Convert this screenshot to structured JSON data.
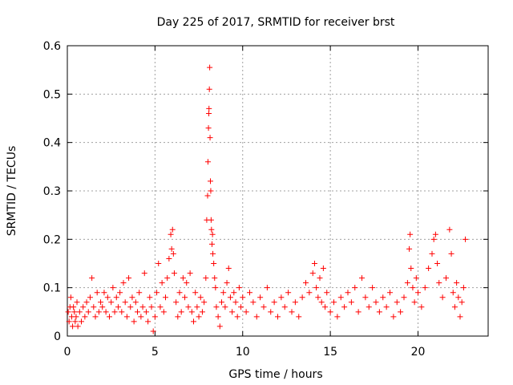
{
  "chart_data": {
    "type": "scatter",
    "title": "Day 225 of 2017, SRMTID for receiver brst",
    "xlabel": "GPS time / hours",
    "ylabel": "SRMTID / TECUs",
    "xlim": [
      0,
      24
    ],
    "ylim": [
      0,
      0.6
    ],
    "x_ticks": [
      0,
      5,
      10,
      15,
      20
    ],
    "x_tick_labels": [
      "0",
      "5",
      "10",
      "15",
      "20"
    ],
    "y_ticks": [
      0,
      0.1,
      0.2,
      0.3,
      0.4,
      0.5,
      0.6
    ],
    "y_tick_labels": [
      "0",
      "0.1",
      "0.2",
      "0.3",
      "0.4",
      "0.5",
      "0.6"
    ],
    "grid": true,
    "marker": "+",
    "point_color": "#ff0000",
    "series": [
      {
        "name": "SRMTID",
        "points": [
          [
            0.05,
            0.05
          ],
          [
            0.1,
            0.03
          ],
          [
            0.15,
            0.06
          ],
          [
            0.2,
            0.08
          ],
          [
            0.25,
            0.04
          ],
          [
            0.3,
            0.02
          ],
          [
            0.35,
            0.06
          ],
          [
            0.4,
            0.05
          ],
          [
            0.45,
            0.03
          ],
          [
            0.5,
            0.04
          ],
          [
            0.55,
            0.07
          ],
          [
            0.6,
            0.02
          ],
          [
            0.7,
            0.05
          ],
          [
            0.8,
            0.03
          ],
          [
            0.9,
            0.06
          ],
          [
            1.0,
            0.04
          ],
          [
            1.1,
            0.07
          ],
          [
            1.2,
            0.05
          ],
          [
            1.3,
            0.08
          ],
          [
            1.4,
            0.12
          ],
          [
            1.5,
            0.06
          ],
          [
            1.6,
            0.04
          ],
          [
            1.7,
            0.09
          ],
          [
            1.8,
            0.05
          ],
          [
            1.9,
            0.07
          ],
          [
            2.0,
            0.06
          ],
          [
            2.1,
            0.09
          ],
          [
            2.2,
            0.05
          ],
          [
            2.3,
            0.08
          ],
          [
            2.4,
            0.04
          ],
          [
            2.5,
            0.07
          ],
          [
            2.6,
            0.1
          ],
          [
            2.7,
            0.05
          ],
          [
            2.8,
            0.08
          ],
          [
            2.9,
            0.06
          ],
          [
            3.0,
            0.09
          ],
          [
            3.1,
            0.05
          ],
          [
            3.2,
            0.11
          ],
          [
            3.3,
            0.07
          ],
          [
            3.4,
            0.04
          ],
          [
            3.5,
            0.12
          ],
          [
            3.6,
            0.06
          ],
          [
            3.7,
            0.08
          ],
          [
            3.8,
            0.03
          ],
          [
            3.9,
            0.07
          ],
          [
            4.0,
            0.05
          ],
          [
            4.1,
            0.09
          ],
          [
            4.2,
            0.04
          ],
          [
            4.3,
            0.06
          ],
          [
            4.4,
            0.13
          ],
          [
            4.5,
            0.05
          ],
          [
            4.6,
            0.03
          ],
          [
            4.7,
            0.08
          ],
          [
            4.8,
            0.06
          ],
          [
            4.9,
            0.01
          ],
          [
            5.0,
            0.04
          ],
          [
            5.1,
            0.09
          ],
          [
            5.2,
            0.15
          ],
          [
            5.3,
            0.06
          ],
          [
            5.4,
            0.11
          ],
          [
            5.5,
            0.05
          ],
          [
            5.6,
            0.08
          ],
          [
            5.7,
            0.12
          ],
          [
            5.8,
            0.16
          ],
          [
            5.9,
            0.21
          ],
          [
            5.95,
            0.18
          ],
          [
            6.0,
            0.22
          ],
          [
            6.05,
            0.17
          ],
          [
            6.1,
            0.13
          ],
          [
            6.2,
            0.07
          ],
          [
            6.3,
            0.04
          ],
          [
            6.4,
            0.09
          ],
          [
            6.5,
            0.05
          ],
          [
            6.6,
            0.12
          ],
          [
            6.7,
            0.08
          ],
          [
            6.8,
            0.11
          ],
          [
            6.9,
            0.06
          ],
          [
            7.0,
            0.13
          ],
          [
            7.1,
            0.05
          ],
          [
            7.2,
            0.03
          ],
          [
            7.3,
            0.09
          ],
          [
            7.4,
            0.06
          ],
          [
            7.5,
            0.04
          ],
          [
            7.6,
            0.08
          ],
          [
            7.7,
            0.05
          ],
          [
            7.8,
            0.07
          ],
          [
            7.9,
            0.12
          ],
          [
            7.95,
            0.24
          ],
          [
            8.0,
            0.29
          ],
          [
            8.02,
            0.36
          ],
          [
            8.05,
            0.43
          ],
          [
            8.07,
            0.46
          ],
          [
            8.08,
            0.47
          ],
          [
            8.1,
            0.51
          ],
          [
            8.12,
            0.555
          ],
          [
            8.14,
            0.41
          ],
          [
            8.16,
            0.32
          ],
          [
            8.18,
            0.3
          ],
          [
            8.2,
            0.24
          ],
          [
            8.22,
            0.22
          ],
          [
            8.25,
            0.19
          ],
          [
            8.28,
            0.21
          ],
          [
            8.3,
            0.17
          ],
          [
            8.35,
            0.15
          ],
          [
            8.4,
            0.12
          ],
          [
            8.45,
            0.1
          ],
          [
            8.5,
            0.06
          ],
          [
            8.6,
            0.04
          ],
          [
            8.7,
            0.02
          ],
          [
            8.8,
            0.07
          ],
          [
            8.9,
            0.09
          ],
          [
            9.0,
            0.06
          ],
          [
            9.1,
            0.11
          ],
          [
            9.2,
            0.14
          ],
          [
            9.3,
            0.08
          ],
          [
            9.4,
            0.05
          ],
          [
            9.5,
            0.09
          ],
          [
            9.6,
            0.07
          ],
          [
            9.7,
            0.04
          ],
          [
            9.8,
            0.1
          ],
          [
            9.9,
            0.06
          ],
          [
            10.0,
            0.08
          ],
          [
            10.2,
            0.05
          ],
          [
            10.4,
            0.09
          ],
          [
            10.6,
            0.07
          ],
          [
            10.8,
            0.04
          ],
          [
            11.0,
            0.08
          ],
          [
            11.2,
            0.06
          ],
          [
            11.4,
            0.1
          ],
          [
            11.6,
            0.05
          ],
          [
            11.8,
            0.07
          ],
          [
            12.0,
            0.04
          ],
          [
            12.2,
            0.08
          ],
          [
            12.4,
            0.06
          ],
          [
            12.6,
            0.09
          ],
          [
            12.8,
            0.05
          ],
          [
            13.0,
            0.07
          ],
          [
            13.2,
            0.04
          ],
          [
            13.4,
            0.08
          ],
          [
            13.6,
            0.11
          ],
          [
            13.8,
            0.09
          ],
          [
            14.0,
            0.13
          ],
          [
            14.1,
            0.15
          ],
          [
            14.2,
            0.1
          ],
          [
            14.3,
            0.08
          ],
          [
            14.4,
            0.12
          ],
          [
            14.5,
            0.07
          ],
          [
            14.6,
            0.14
          ],
          [
            14.7,
            0.06
          ],
          [
            14.8,
            0.09
          ],
          [
            15.0,
            0.05
          ],
          [
            15.2,
            0.07
          ],
          [
            15.4,
            0.04
          ],
          [
            15.6,
            0.08
          ],
          [
            15.8,
            0.06
          ],
          [
            16.0,
            0.09
          ],
          [
            16.2,
            0.07
          ],
          [
            16.4,
            0.1
          ],
          [
            16.6,
            0.05
          ],
          [
            16.8,
            0.12
          ],
          [
            17.0,
            0.08
          ],
          [
            17.2,
            0.06
          ],
          [
            17.4,
            0.1
          ],
          [
            17.6,
            0.07
          ],
          [
            17.8,
            0.05
          ],
          [
            18.0,
            0.08
          ],
          [
            18.2,
            0.06
          ],
          [
            18.4,
            0.09
          ],
          [
            18.6,
            0.04
          ],
          [
            18.8,
            0.07
          ],
          [
            19.0,
            0.05
          ],
          [
            19.2,
            0.08
          ],
          [
            19.4,
            0.11
          ],
          [
            19.5,
            0.18
          ],
          [
            19.55,
            0.21
          ],
          [
            19.6,
            0.14
          ],
          [
            19.7,
            0.1
          ],
          [
            19.8,
            0.07
          ],
          [
            19.9,
            0.12
          ],
          [
            20.0,
            0.09
          ],
          [
            20.2,
            0.06
          ],
          [
            20.4,
            0.1
          ],
          [
            20.6,
            0.14
          ],
          [
            20.8,
            0.17
          ],
          [
            20.9,
            0.2
          ],
          [
            21.0,
            0.21
          ],
          [
            21.1,
            0.15
          ],
          [
            21.2,
            0.11
          ],
          [
            21.4,
            0.08
          ],
          [
            21.6,
            0.12
          ],
          [
            21.8,
            0.22
          ],
          [
            21.9,
            0.17
          ],
          [
            22.0,
            0.09
          ],
          [
            22.1,
            0.06
          ],
          [
            22.2,
            0.11
          ],
          [
            22.3,
            0.08
          ],
          [
            22.4,
            0.04
          ],
          [
            22.5,
            0.07
          ],
          [
            22.6,
            0.1
          ],
          [
            22.7,
            0.2
          ]
        ]
      }
    ]
  }
}
